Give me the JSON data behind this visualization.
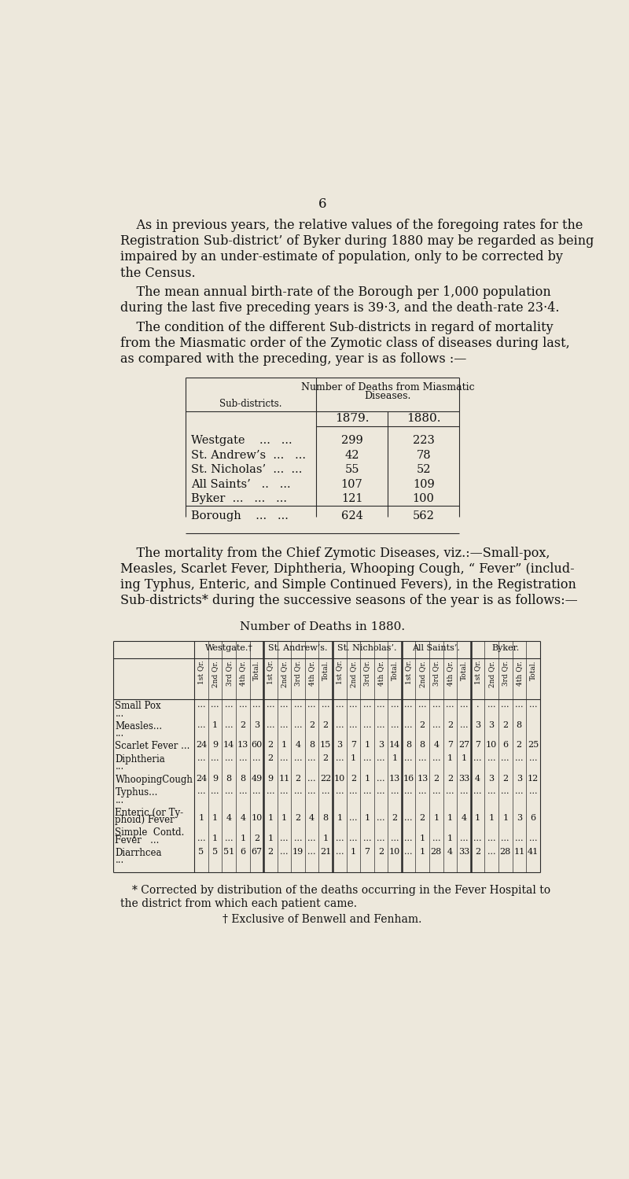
{
  "bg_color": "#ede8dc",
  "text_color": "#111111",
  "page_number": "6",
  "table1_rows": [
    [
      "Westgate    ...   ...",
      "299",
      "223"
    ],
    [
      "St. Andrew’s  ...   ...",
      "42",
      "78"
    ],
    [
      "St. Nicholas’  ...  ...",
      "55",
      "52"
    ],
    [
      "All Saints’   ..   ...",
      "107",
      "109"
    ],
    [
      "Byker  ...   ...   ...",
      "121",
      "100"
    ],
    [
      "Borough    ...   ...",
      "624",
      "562"
    ]
  ],
  "table2_col_groups": [
    "Westgate.†",
    "St. Andrew’s.",
    "St. Nicholas’.",
    "All Saints’.",
    "Byker."
  ],
  "table2_sub_cols": [
    "1st Qr.",
    "2nd Qr.",
    "3rd Qr.",
    "4th Qr.",
    "Total."
  ],
  "table2_diseases": [
    [
      "Small Pox",
      "   ..."
    ],
    [
      "Measles...",
      "   ..."
    ],
    [
      "Scarlet Fever ...",
      ""
    ],
    [
      "Diphtheria",
      "   ..."
    ],
    [
      "WhoopingCough",
      ""
    ],
    [
      "Typhus...",
      "   ..."
    ],
    [
      "Enteric (or Ty-",
      "  phoid) Fever"
    ],
    [
      "Simple  Contd.",
      "    Fever   ..."
    ],
    [
      "Diarrhcea",
      "   ..."
    ]
  ],
  "table2_data": [
    [
      "...",
      "...",
      "...",
      "...",
      "...",
      "...",
      "...",
      "...",
      "...",
      "...",
      "...",
      "...",
      "...",
      "...",
      "...",
      "...",
      "...",
      "...",
      "...",
      "...",
      ".",
      "...",
      "...",
      "...",
      "..."
    ],
    [
      "...",
      "1",
      "...",
      "2",
      "3",
      "...",
      "...",
      "...",
      "2",
      "2",
      "...",
      "...",
      "...",
      "...",
      "...",
      "...",
      "2",
      "...",
      "2",
      "...",
      "3",
      "3",
      "2",
      "8",
      ""
    ],
    [
      "24",
      "9",
      "14",
      "13",
      "60",
      "2",
      "1",
      "4",
      "8",
      "15",
      "3",
      "7",
      "1",
      "3",
      "14",
      "8",
      "8",
      "4",
      "7",
      "27",
      "7",
      "10",
      "6",
      "2",
      "25"
    ],
    [
      "...",
      "...",
      "...",
      "...",
      "...",
      "2",
      "...",
      "...",
      "...",
      "2",
      "...",
      "1",
      "...",
      "...",
      "1",
      "...",
      "...",
      "...",
      "1",
      "1",
      "...",
      "...",
      "...",
      "...",
      "..."
    ],
    [
      "24",
      "9",
      "8",
      "8",
      "49",
      "9",
      "11",
      "2",
      "...",
      "22",
      "10",
      "2",
      "1",
      "...",
      "13",
      "16",
      "13",
      "2",
      "2",
      "33",
      "4",
      "3",
      "2",
      "3",
      "12"
    ],
    [
      "...",
      "...",
      "...",
      "...",
      "...",
      "...",
      "...",
      "...",
      "...",
      "...",
      "...",
      "...",
      "...",
      "...",
      "...",
      "...",
      "...",
      "...",
      "...",
      "...",
      "...",
      "...",
      "...",
      "...",
      "..."
    ],
    [
      "1",
      "1",
      "4",
      "4",
      "10",
      "1",
      "1",
      "2",
      "4",
      "8",
      "1",
      "...",
      "1",
      "...",
      "2",
      "...",
      "2",
      "1",
      "1",
      "4",
      "1",
      "1",
      "1",
      "3",
      "6"
    ],
    [
      "...",
      "1",
      "...",
      "1",
      "2",
      "1",
      "...",
      "...",
      "...",
      "1",
      "...",
      "...",
      "...",
      "...",
      "...",
      "...",
      "1",
      "...",
      "1",
      "...",
      "...",
      "...",
      "...",
      "...",
      "..."
    ],
    [
      "5",
      "5",
      "51",
      "6",
      "67",
      "2",
      "...",
      "19",
      "...",
      "21",
      "...",
      "1",
      "7",
      "2",
      "10",
      "...",
      "1",
      "28",
      "4",
      "33",
      "2",
      "...",
      "28",
      "11",
      "41"
    ]
  ],
  "footnote1": "* Corrected by distribution of the deaths occurring in the Fever Hospital to",
  "footnote2": "the district from which each patient came.",
  "footnote3": "† Exclusive of Benwell and Fenham."
}
